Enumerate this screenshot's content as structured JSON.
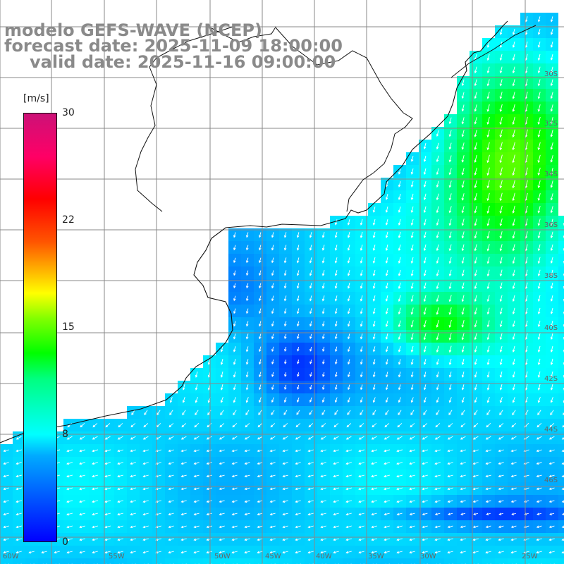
{
  "title": {
    "model": "modelo GEFS-WAVE (NCEP)",
    "forecast": "forecast date: 2025-11-09 18:00:00",
    "valid": "valid date: 2025-11-16 09:00:00"
  },
  "colorbar": {
    "units": "[m/s]",
    "ticks": [
      "30",
      "22",
      "15",
      "8",
      "0"
    ],
    "colors": [
      "#0000ff",
      "#00aaff",
      "#00ffff",
      "#00ff00",
      "#ffff00",
      "#ff0000",
      "#cc1177"
    ]
  },
  "axes": {
    "bottom_labels": [
      "60W",
      "55W",
      "50W",
      "45W",
      "40W",
      "35W",
      "30W",
      "25W"
    ],
    "right_labels": [
      "30S",
      "32S",
      "34S",
      "36S",
      "38S",
      "40S",
      "42S",
      "44S",
      "46S"
    ]
  },
  "map_features": [
    "wind speed field",
    "wind arrows",
    "coastline",
    "lat/lon grid"
  ]
}
